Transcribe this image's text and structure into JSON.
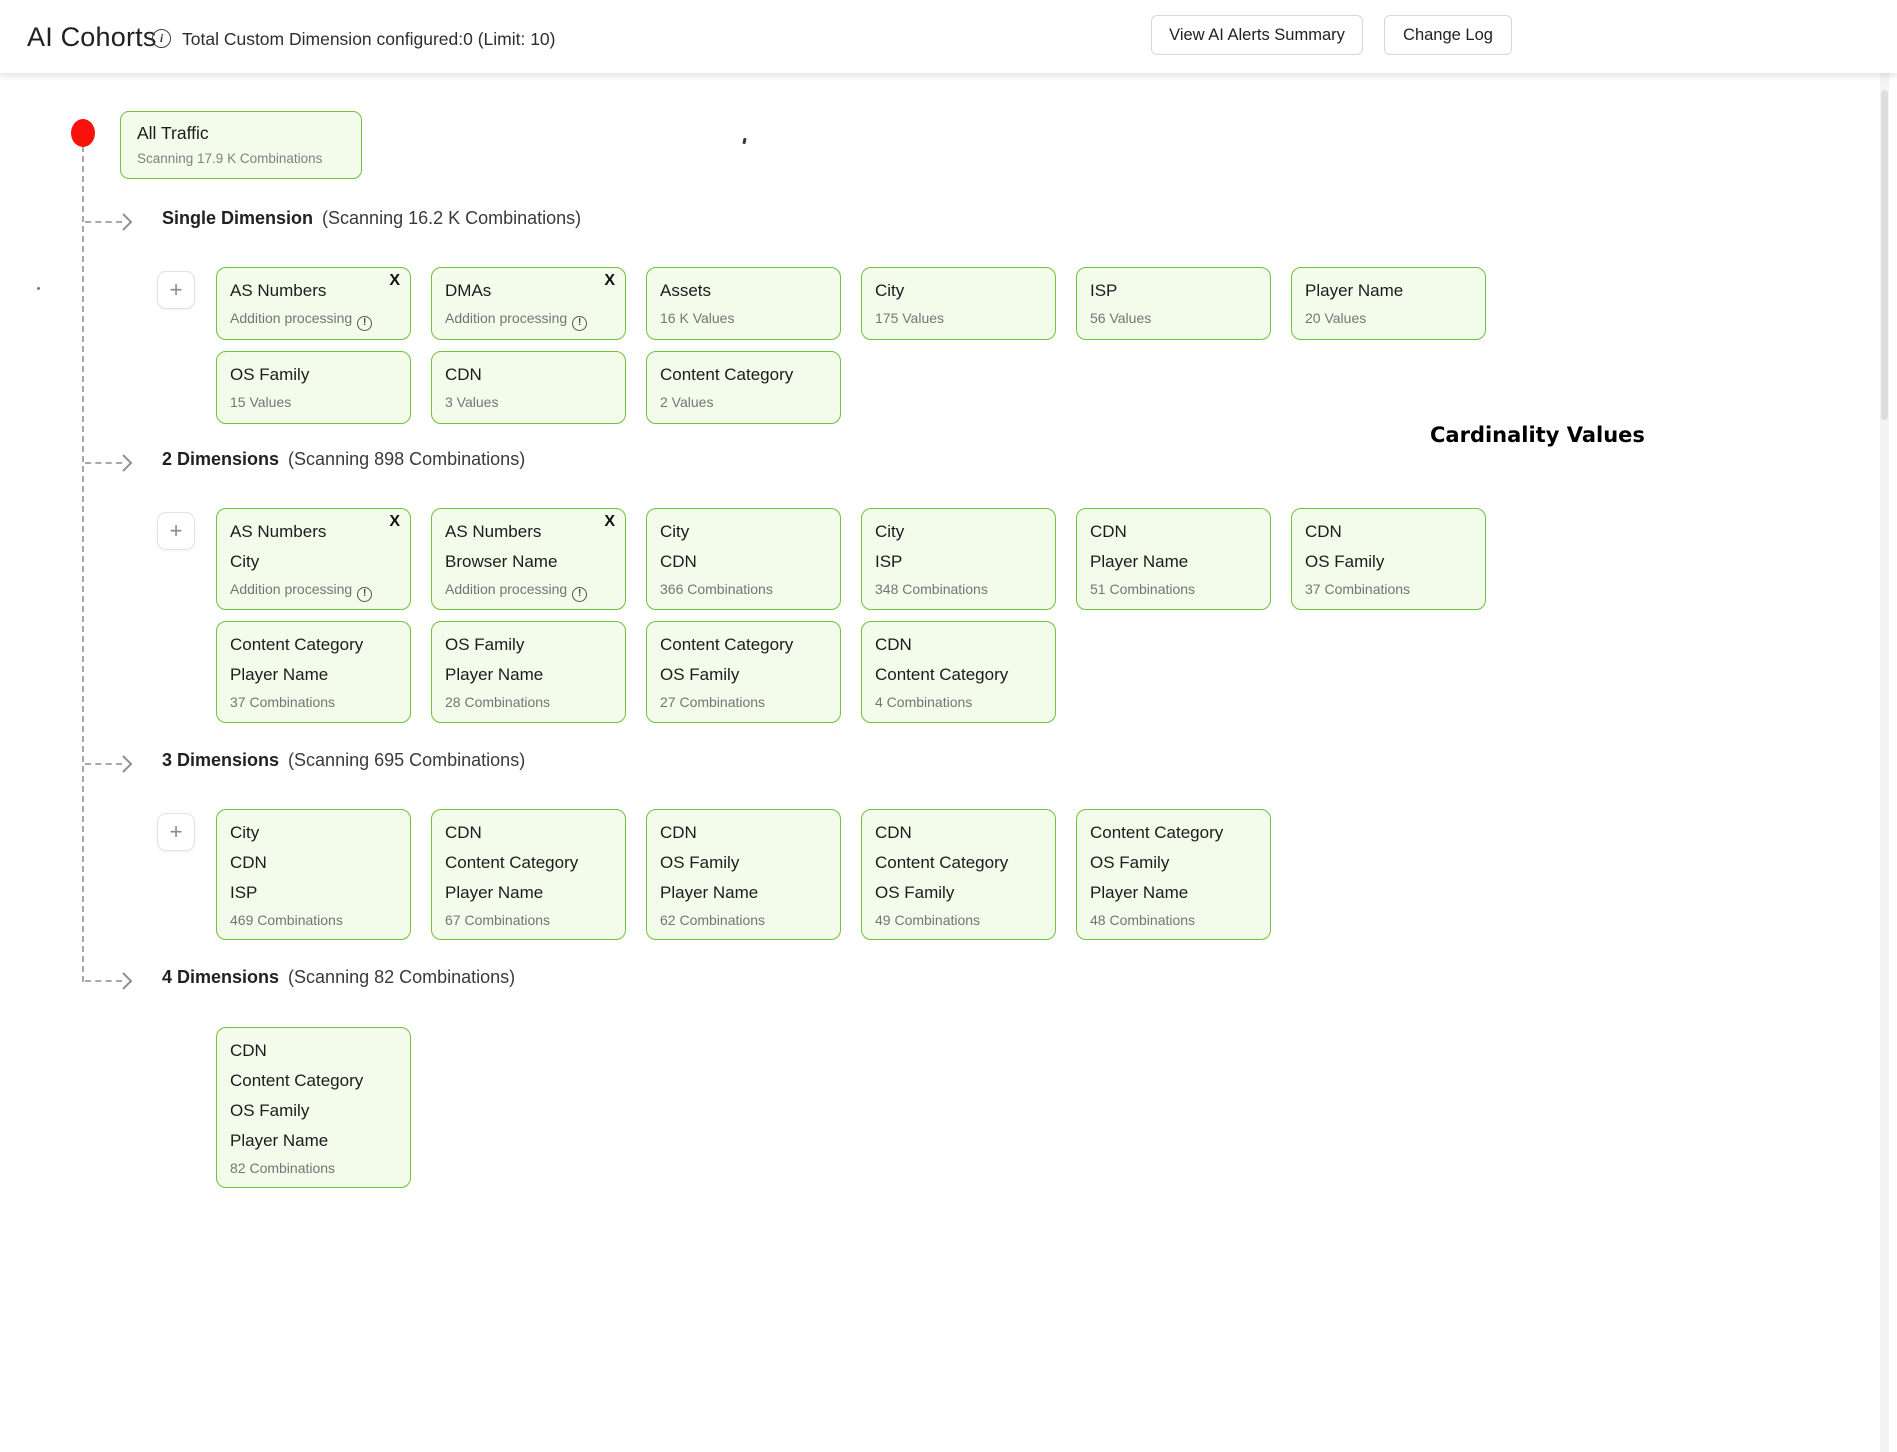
{
  "header": {
    "title": "AI Cohorts",
    "subtitle": "Total Custom Dimension configured:0 (Limit: 10)",
    "buttons": {
      "alerts": "View AI Alerts Summary",
      "changelog": "Change Log"
    }
  },
  "root_node": {
    "title": "All Traffic",
    "subtitle": "Scanning 17.9 K Combinations"
  },
  "annotation": {
    "label": "Cardinality Values"
  },
  "ui": {
    "add_glyph": "+",
    "close_glyph": "X",
    "info_glyph": "i",
    "warn_glyph": "!"
  },
  "colors": {
    "card_border": "#70c23c",
    "card_bg": "#f3fbea",
    "root_dot_red": "#f8120b",
    "tree_line": "#a8a8a8"
  },
  "sections": [
    {
      "label": "Single Dimension",
      "scanning": "(Scanning 16.2 K Combinations)",
      "has_add_button": true,
      "cards": [
        {
          "dims": [
            "AS Numbers"
          ],
          "sub": "Addition processing",
          "warn": true,
          "closable": true
        },
        {
          "dims": [
            "DMAs"
          ],
          "sub": "Addition processing",
          "warn": true,
          "closable": true
        },
        {
          "dims": [
            "Assets"
          ],
          "sub": "16 K Values",
          "warn": false,
          "closable": false
        },
        {
          "dims": [
            "City"
          ],
          "sub": "175 Values",
          "warn": false,
          "closable": false
        },
        {
          "dims": [
            "ISP"
          ],
          "sub": "56 Values",
          "warn": false,
          "closable": false
        },
        {
          "dims": [
            "Player Name"
          ],
          "sub": "20 Values",
          "warn": false,
          "closable": false
        },
        {
          "dims": [
            "OS Family"
          ],
          "sub": "15 Values",
          "warn": false,
          "closable": false
        },
        {
          "dims": [
            "CDN"
          ],
          "sub": "3 Values",
          "warn": false,
          "closable": false
        },
        {
          "dims": [
            "Content Category"
          ],
          "sub": "2 Values",
          "warn": false,
          "closable": false
        }
      ]
    },
    {
      "label": "2 Dimensions",
      "scanning": "(Scanning 898 Combinations)",
      "has_add_button": true,
      "cards": [
        {
          "dims": [
            "AS Numbers",
            "City"
          ],
          "sub": "Addition processing",
          "warn": true,
          "closable": true
        },
        {
          "dims": [
            "AS Numbers",
            "Browser Name"
          ],
          "sub": "Addition processing",
          "warn": true,
          "closable": true
        },
        {
          "dims": [
            "City",
            "CDN"
          ],
          "sub": "366 Combinations",
          "warn": false,
          "closable": false
        },
        {
          "dims": [
            "City",
            "ISP"
          ],
          "sub": "348 Combinations",
          "warn": false,
          "closable": false
        },
        {
          "dims": [
            "CDN",
            "Player Name"
          ],
          "sub": "51 Combinations",
          "warn": false,
          "closable": false
        },
        {
          "dims": [
            "CDN",
            "OS Family"
          ],
          "sub": "37 Combinations",
          "warn": false,
          "closable": false
        },
        {
          "dims": [
            "Content Category",
            "Player Name"
          ],
          "sub": "37 Combinations",
          "warn": false,
          "closable": false
        },
        {
          "dims": [
            "OS Family",
            "Player Name"
          ],
          "sub": "28 Combinations",
          "warn": false,
          "closable": false
        },
        {
          "dims": [
            "Content Category",
            "OS Family"
          ],
          "sub": "27 Combinations",
          "warn": false,
          "closable": false
        },
        {
          "dims": [
            "CDN",
            "Content Category"
          ],
          "sub": "4 Combinations",
          "warn": false,
          "closable": false
        }
      ]
    },
    {
      "label": "3 Dimensions",
      "scanning": "(Scanning 695 Combinations)",
      "has_add_button": true,
      "cards": [
        {
          "dims": [
            "City",
            "CDN",
            "ISP"
          ],
          "sub": "469 Combinations",
          "warn": false,
          "closable": false
        },
        {
          "dims": [
            "CDN",
            "Content Category",
            "Player Name"
          ],
          "sub": "67 Combinations",
          "warn": false,
          "closable": false
        },
        {
          "dims": [
            "CDN",
            "OS Family",
            "Player Name"
          ],
          "sub": "62 Combinations",
          "warn": false,
          "closable": false
        },
        {
          "dims": [
            "CDN",
            "Content Category",
            "OS Family"
          ],
          "sub": "49 Combinations",
          "warn": false,
          "closable": false
        },
        {
          "dims": [
            "Content Category",
            "OS Family",
            "Player Name"
          ],
          "sub": "48 Combinations",
          "warn": false,
          "closable": false
        }
      ]
    },
    {
      "label": "4 Dimensions",
      "scanning": "(Scanning 82 Combinations)",
      "has_add_button": false,
      "cards": [
        {
          "dims": [
            "CDN",
            "Content Category",
            "OS Family",
            "Player Name"
          ],
          "sub": "82 Combinations",
          "warn": false,
          "closable": false
        }
      ]
    }
  ]
}
